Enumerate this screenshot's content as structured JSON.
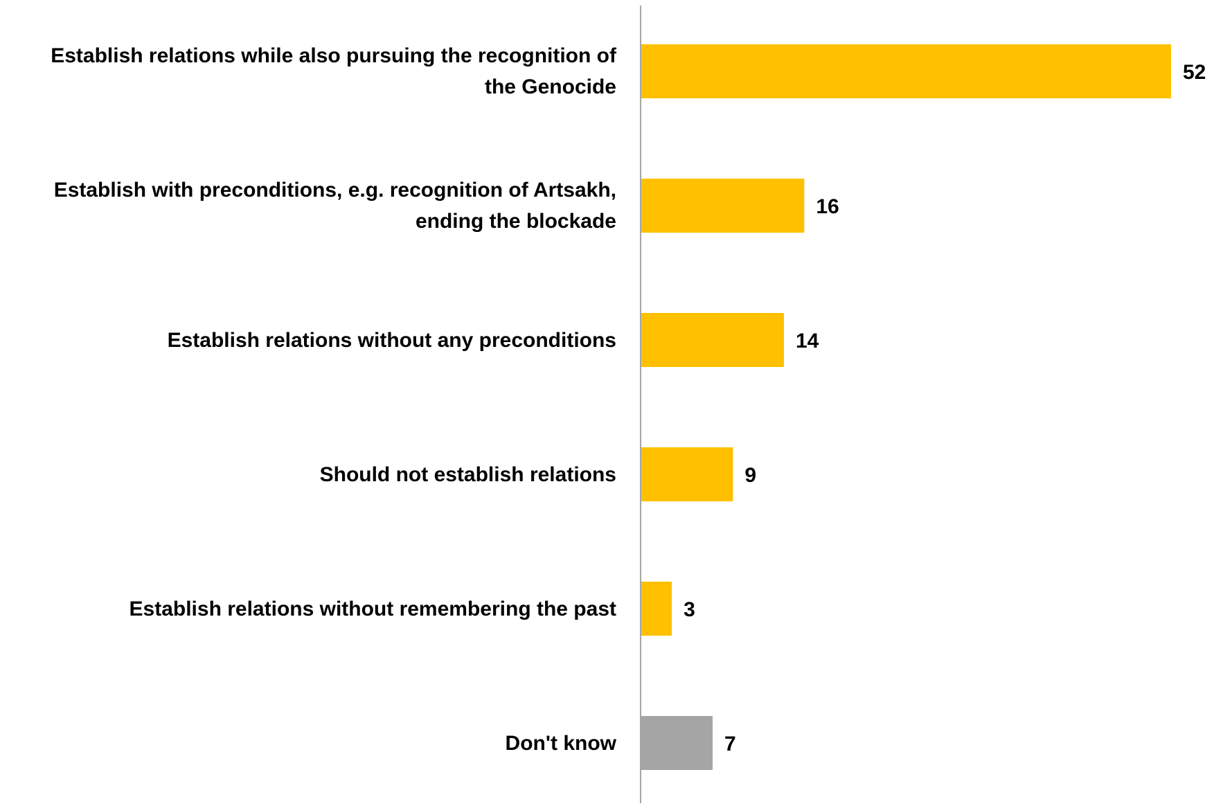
{
  "chart_data": {
    "type": "bar",
    "orientation": "horizontal",
    "categories": [
      "Establish relations while also pursuing the recognition of the Genocide",
      "Establish with preconditions, e.g. recognition of Artsakh, ending the blockade",
      "Establish relations without any preconditions",
      "Should not establish relations",
      "Establish relations without remembering the past",
      "Don't know"
    ],
    "label_lines": [
      [
        "Establish relations while also pursuing the recognition of",
        "the Genocide"
      ],
      [
        "Establish with preconditions, e.g. recognition of Artsakh,",
        "ending the blockade"
      ],
      [
        "Establish relations without any preconditions"
      ],
      [
        "Should not establish relations"
      ],
      [
        "Establish relations without remembering the past"
      ],
      [
        "Don't know"
      ]
    ],
    "values": [
      52,
      16,
      14,
      9,
      3,
      7
    ],
    "bar_colors": [
      "#FFC000",
      "#FFC000",
      "#FFC000",
      "#FFC000",
      "#FFC000",
      "#A5A5A5"
    ],
    "data_labels": true,
    "xlim": [
      0,
      52
    ],
    "grid": false,
    "legend": "none",
    "axis_color": "#A6A6A6"
  }
}
